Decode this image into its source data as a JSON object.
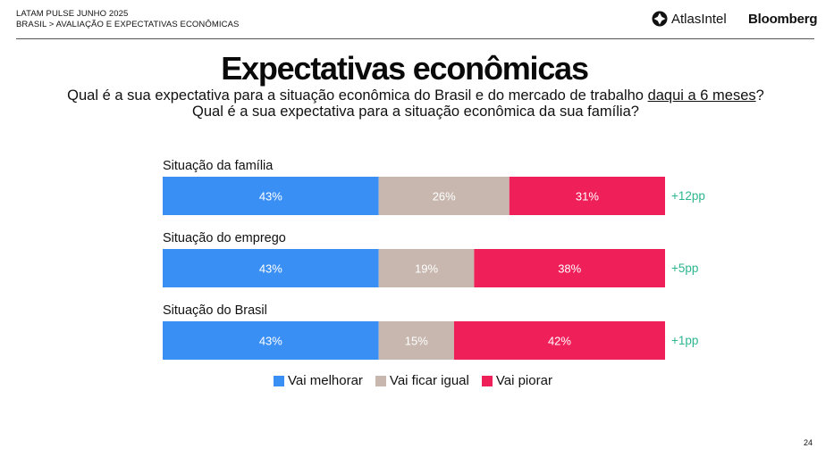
{
  "header": {
    "line1": "LATAM PULSE JUNHO 2025",
    "line2": "BRASIL > AVALIAÇÃO E EXPECTATIVAS ECONÔMICAS"
  },
  "brands": {
    "atlas": "AtlasIntel",
    "bloomberg": "Bloomberg"
  },
  "title": "Expectativas econômicas",
  "subtitle": {
    "line1_before": "Qual é a sua expectativa para a situação econômica do Brasil e do mercado de trabalho ",
    "line1_underlined": "daqui a 6 meses",
    "line1_after": "?",
    "line2": "Qual é a sua expectativa para a situação econômica da sua família?"
  },
  "page_number": "24",
  "chart_data": {
    "type": "bar",
    "stacked": true,
    "orientation": "horizontal",
    "categories": [
      "Situação da família",
      "Situação do emprego",
      "Situação do Brasil"
    ],
    "series": [
      {
        "name": "Vai melhorar",
        "color": "#3a8ff5",
        "values": [
          43,
          43,
          43
        ],
        "labels": [
          "43%",
          "43%",
          "43%"
        ]
      },
      {
        "name": "Vai ficar igual",
        "color": "#c7b7ae",
        "values": [
          26,
          19,
          15
        ],
        "labels": [
          "26%",
          "19%",
          "15%"
        ]
      },
      {
        "name": "Vai piorar",
        "color": "#ef1f5a",
        "values": [
          31,
          38,
          42
        ],
        "labels": [
          "31%",
          "38%",
          "42%"
        ]
      }
    ],
    "net": [
      "+12pp",
      "+5pp",
      "+1pp"
    ],
    "net_color": "#2db58f",
    "xlim": [
      0,
      100
    ],
    "legend_position": "bottom"
  }
}
